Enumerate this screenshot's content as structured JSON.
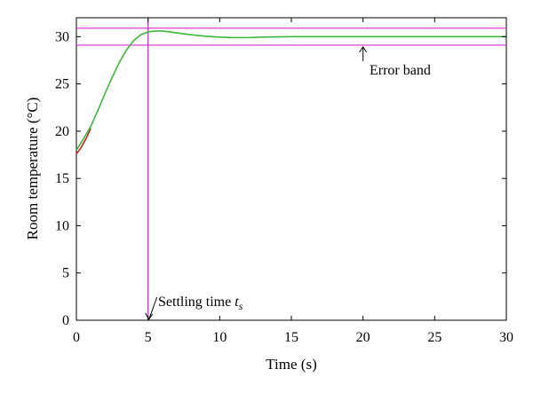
{
  "chart_data": {
    "type": "line",
    "title": "",
    "xlabel": "Time (s)",
    "ylabel": "Room temperature (°C)",
    "xlim": [
      0,
      30
    ],
    "ylim": [
      0,
      32
    ],
    "xticks": [
      0,
      5,
      10,
      15,
      20,
      25,
      30
    ],
    "yticks": [
      0,
      5,
      10,
      15,
      20,
      25,
      30
    ],
    "grid": false,
    "series": [
      {
        "name": "",
        "color": "#d62020",
        "x": [
          0,
          0.3,
          0.7,
          1.0
        ],
        "y": [
          17.6,
          18.2,
          19.3,
          20.3
        ]
      },
      {
        "name": "",
        "color": "#3cb83c",
        "x": [
          0,
          0.5,
          1,
          1.5,
          2,
          2.5,
          3,
          3.5,
          4,
          4.5,
          5,
          5.5,
          6,
          6.5,
          7,
          8,
          9,
          10,
          11,
          12,
          13,
          14,
          15,
          17,
          20,
          25,
          30
        ],
        "y": [
          18.0,
          19.2,
          20.5,
          22.2,
          24.0,
          25.7,
          27.3,
          28.6,
          29.6,
          30.2,
          30.5,
          30.6,
          30.6,
          30.5,
          30.4,
          30.2,
          30.05,
          29.95,
          29.9,
          29.9,
          29.95,
          29.98,
          30.0,
          30.0,
          30.0,
          30.0,
          30.0
        ]
      }
    ],
    "error_band": {
      "upper": 30.9,
      "lower": 29.1,
      "color": "#e040e0"
    },
    "settling_time": {
      "x": 5.0,
      "color": "#c040c0"
    },
    "annotations": {
      "error_band_label": "Error band",
      "settling_label": "Settling time ",
      "settling_symbol": "t",
      "settling_subscript": "s"
    }
  }
}
